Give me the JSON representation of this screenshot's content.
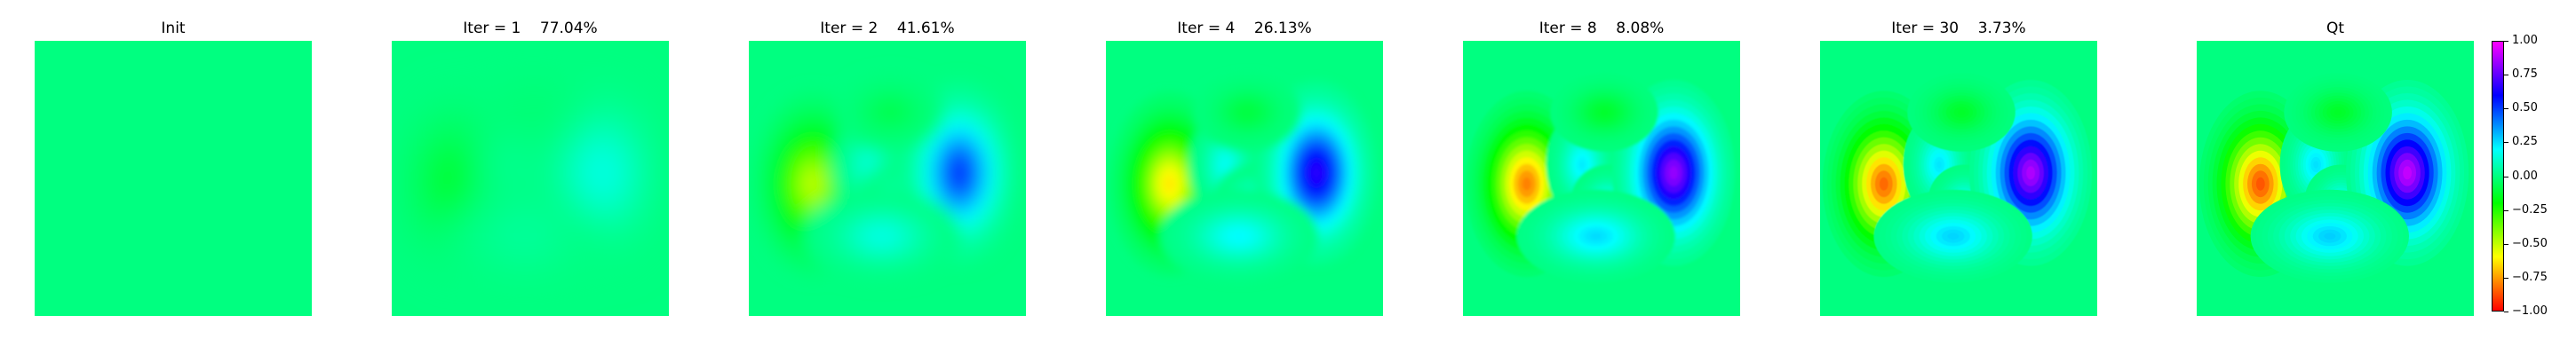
{
  "chart_data": {
    "type": "heatmap",
    "colormap": "gist_rainbow",
    "panels": [
      {
        "title": "Init",
        "scale": 0.0,
        "blur": 0
      },
      {
        "title": "Iter = 1    77.04%",
        "scale": 0.2296,
        "blur": 22
      },
      {
        "title": "Iter = 2    41.61%",
        "scale": 0.5839,
        "blur": 9
      },
      {
        "title": "Iter = 4    26.13%",
        "scale": 0.7387,
        "blur": 5
      },
      {
        "title": "Iter = 8    8.08%",
        "scale": 0.9192,
        "blur": 1.5
      },
      {
        "title": "Iter = 30    3.73%",
        "scale": 0.9627,
        "blur": 0.5
      },
      {
        "title": "Qt",
        "scale": 1.0,
        "blur": 0
      }
    ],
    "colorbar": {
      "min": -1.0,
      "max": 1.0,
      "ticks": [
        1.0,
        0.75,
        0.5,
        0.25,
        0.0,
        -0.25,
        -0.5,
        -0.75,
        -1.0
      ],
      "tick_labels": [
        "1.00",
        "0.75",
        "0.50",
        "0.25",
        "0.00",
        "−0.25",
        "−0.50",
        "−0.75",
        "−1.00"
      ]
    },
    "field_blobs": [
      {
        "cx": 0.23,
        "cy": 0.52,
        "sx": 0.085,
        "sy": 0.13,
        "amp": -0.88
      },
      {
        "cx": 0.43,
        "cy": 0.45,
        "sx": 0.05,
        "sy": 0.075,
        "amp": 0.25
      },
      {
        "cx": 0.52,
        "cy": 0.58,
        "sx": 0.05,
        "sy": 0.05,
        "amp": 0.18
      },
      {
        "cx": 0.76,
        "cy": 0.48,
        "sx": 0.085,
        "sy": 0.13,
        "amp": 0.92
      },
      {
        "cx": 0.48,
        "cy": 0.71,
        "sx": 0.11,
        "sy": 0.065,
        "amp": 0.28
      },
      {
        "cx": 0.51,
        "cy": 0.26,
        "sx": 0.075,
        "sy": 0.055,
        "amp": -0.14
      }
    ]
  }
}
